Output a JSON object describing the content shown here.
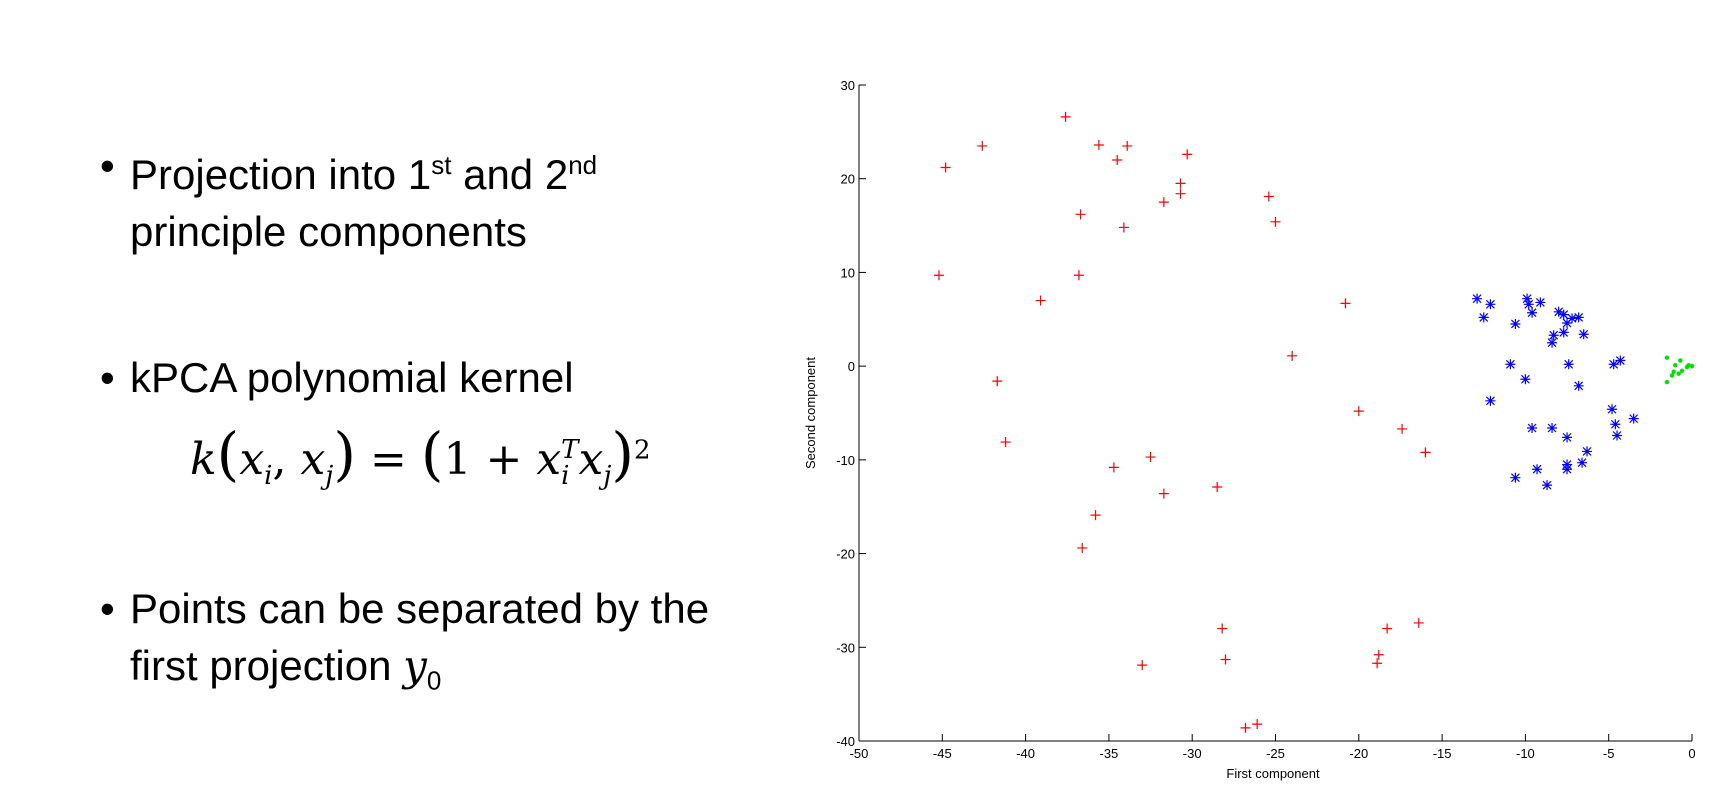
{
  "slide": {
    "bullets": [
      {
        "parts": [
          "Projection into 1",
          "st",
          " and 2",
          "nd",
          "principle components"
        ]
      },
      {
        "parts": [
          "kPCA polynomial kernel"
        ],
        "formula": [
          "k",
          "(",
          "x",
          "i",
          ", ",
          "x",
          "j",
          ")",
          " = ",
          "(",
          "1 + ",
          "x",
          "i",
          "T",
          "x",
          "j",
          ")",
          "2"
        ]
      },
      {
        "parts": [
          "Points can be separated by the",
          "first projection ",
          "y",
          "0"
        ]
      }
    ]
  },
  "chart_data": {
    "type": "scatter",
    "xlabel": "First component",
    "ylabel": "Second component",
    "xlim": [
      -50,
      0
    ],
    "ylim": [
      -40,
      30
    ],
    "xticks": [
      -50,
      -45,
      -40,
      -35,
      -30,
      -25,
      -20,
      -15,
      -10,
      -5,
      0
    ],
    "yticks": [
      -40,
      -30,
      -20,
      -10,
      0,
      10,
      20,
      30
    ],
    "series": [
      {
        "color": "#ff0000",
        "marker": "+",
        "x": [
          -44.8,
          -42.6,
          -37.6,
          -35.6,
          -33.9,
          -34.5,
          -30.3,
          -30.7,
          -30.7,
          -31.7,
          -36.7,
          -34.1,
          -25.4,
          -25.0,
          -45.2,
          -36.8,
          -39.1,
          -20.8,
          -24.0,
          -41.7,
          -41.2,
          -20.0,
          -17.4,
          -16.0,
          -32.5,
          -34.7,
          -31.7,
          -28.5,
          -35.8,
          -36.6,
          -28.2,
          -28.0,
          -33.0,
          -18.3,
          -16.4,
          -18.8,
          -18.9,
          -26.1,
          -26.8
        ],
        "values": [
          21.2,
          23.5,
          26.6,
          23.6,
          23.5,
          22.0,
          22.6,
          19.5,
          18.4,
          17.5,
          16.2,
          14.8,
          18.1,
          15.4,
          9.7,
          9.7,
          7.0,
          6.7,
          1.1,
          -1.6,
          -8.1,
          -4.8,
          -6.7,
          -9.2,
          -9.7,
          -10.8,
          -13.6,
          -12.9,
          -15.9,
          -19.4,
          -28.0,
          -31.3,
          -31.9,
          -28.0,
          -27.4,
          -30.8,
          -31.7,
          -38.2,
          -38.6
        ]
      },
      {
        "color": "#0000ff",
        "marker": "*",
        "x": [
          -12.9,
          -12.1,
          -12.5,
          -9.9,
          -9.8,
          -9.1,
          -9.6,
          -10.6,
          -8.0,
          -7.7,
          -7.2,
          -6.8,
          -7.5,
          -8.3,
          -7.7,
          -6.5,
          -8.4,
          -10.9,
          -10.0,
          -7.4,
          -6.8,
          -4.7,
          -4.3,
          -12.1,
          -4.8,
          -3.5,
          -4.6,
          -9.6,
          -8.4,
          -4.5,
          -7.5,
          -6.3,
          -6.6,
          -7.5,
          -7.5,
          -9.3,
          -10.6,
          -8.7
        ],
        "values": [
          7.2,
          6.6,
          5.2,
          7.2,
          6.6,
          6.8,
          5.7,
          4.5,
          5.8,
          5.5,
          5.1,
          5.2,
          4.6,
          3.3,
          3.6,
          3.4,
          2.5,
          0.2,
          -1.4,
          0.2,
          -2.1,
          0.2,
          0.6,
          -3.7,
          -4.6,
          -5.6,
          -6.2,
          -6.6,
          -6.6,
          -7.4,
          -7.6,
          -9.1,
          -10.3,
          -10.5,
          -11.0,
          -11.0,
          -11.9,
          -12.7
        ]
      },
      {
        "color": "#00e000",
        "marker": ".",
        "x": [
          -1.5,
          -1.0,
          -0.7,
          -0.3,
          -1.2,
          -1.5,
          -0.8,
          -0.2,
          -0.6,
          0,
          -1.1
        ],
        "values": [
          0.9,
          0.1,
          0.6,
          -0.1,
          -1.0,
          -1.7,
          -0.8,
          0.1,
          -0.5,
          0.0,
          -0.6
        ]
      }
    ]
  }
}
